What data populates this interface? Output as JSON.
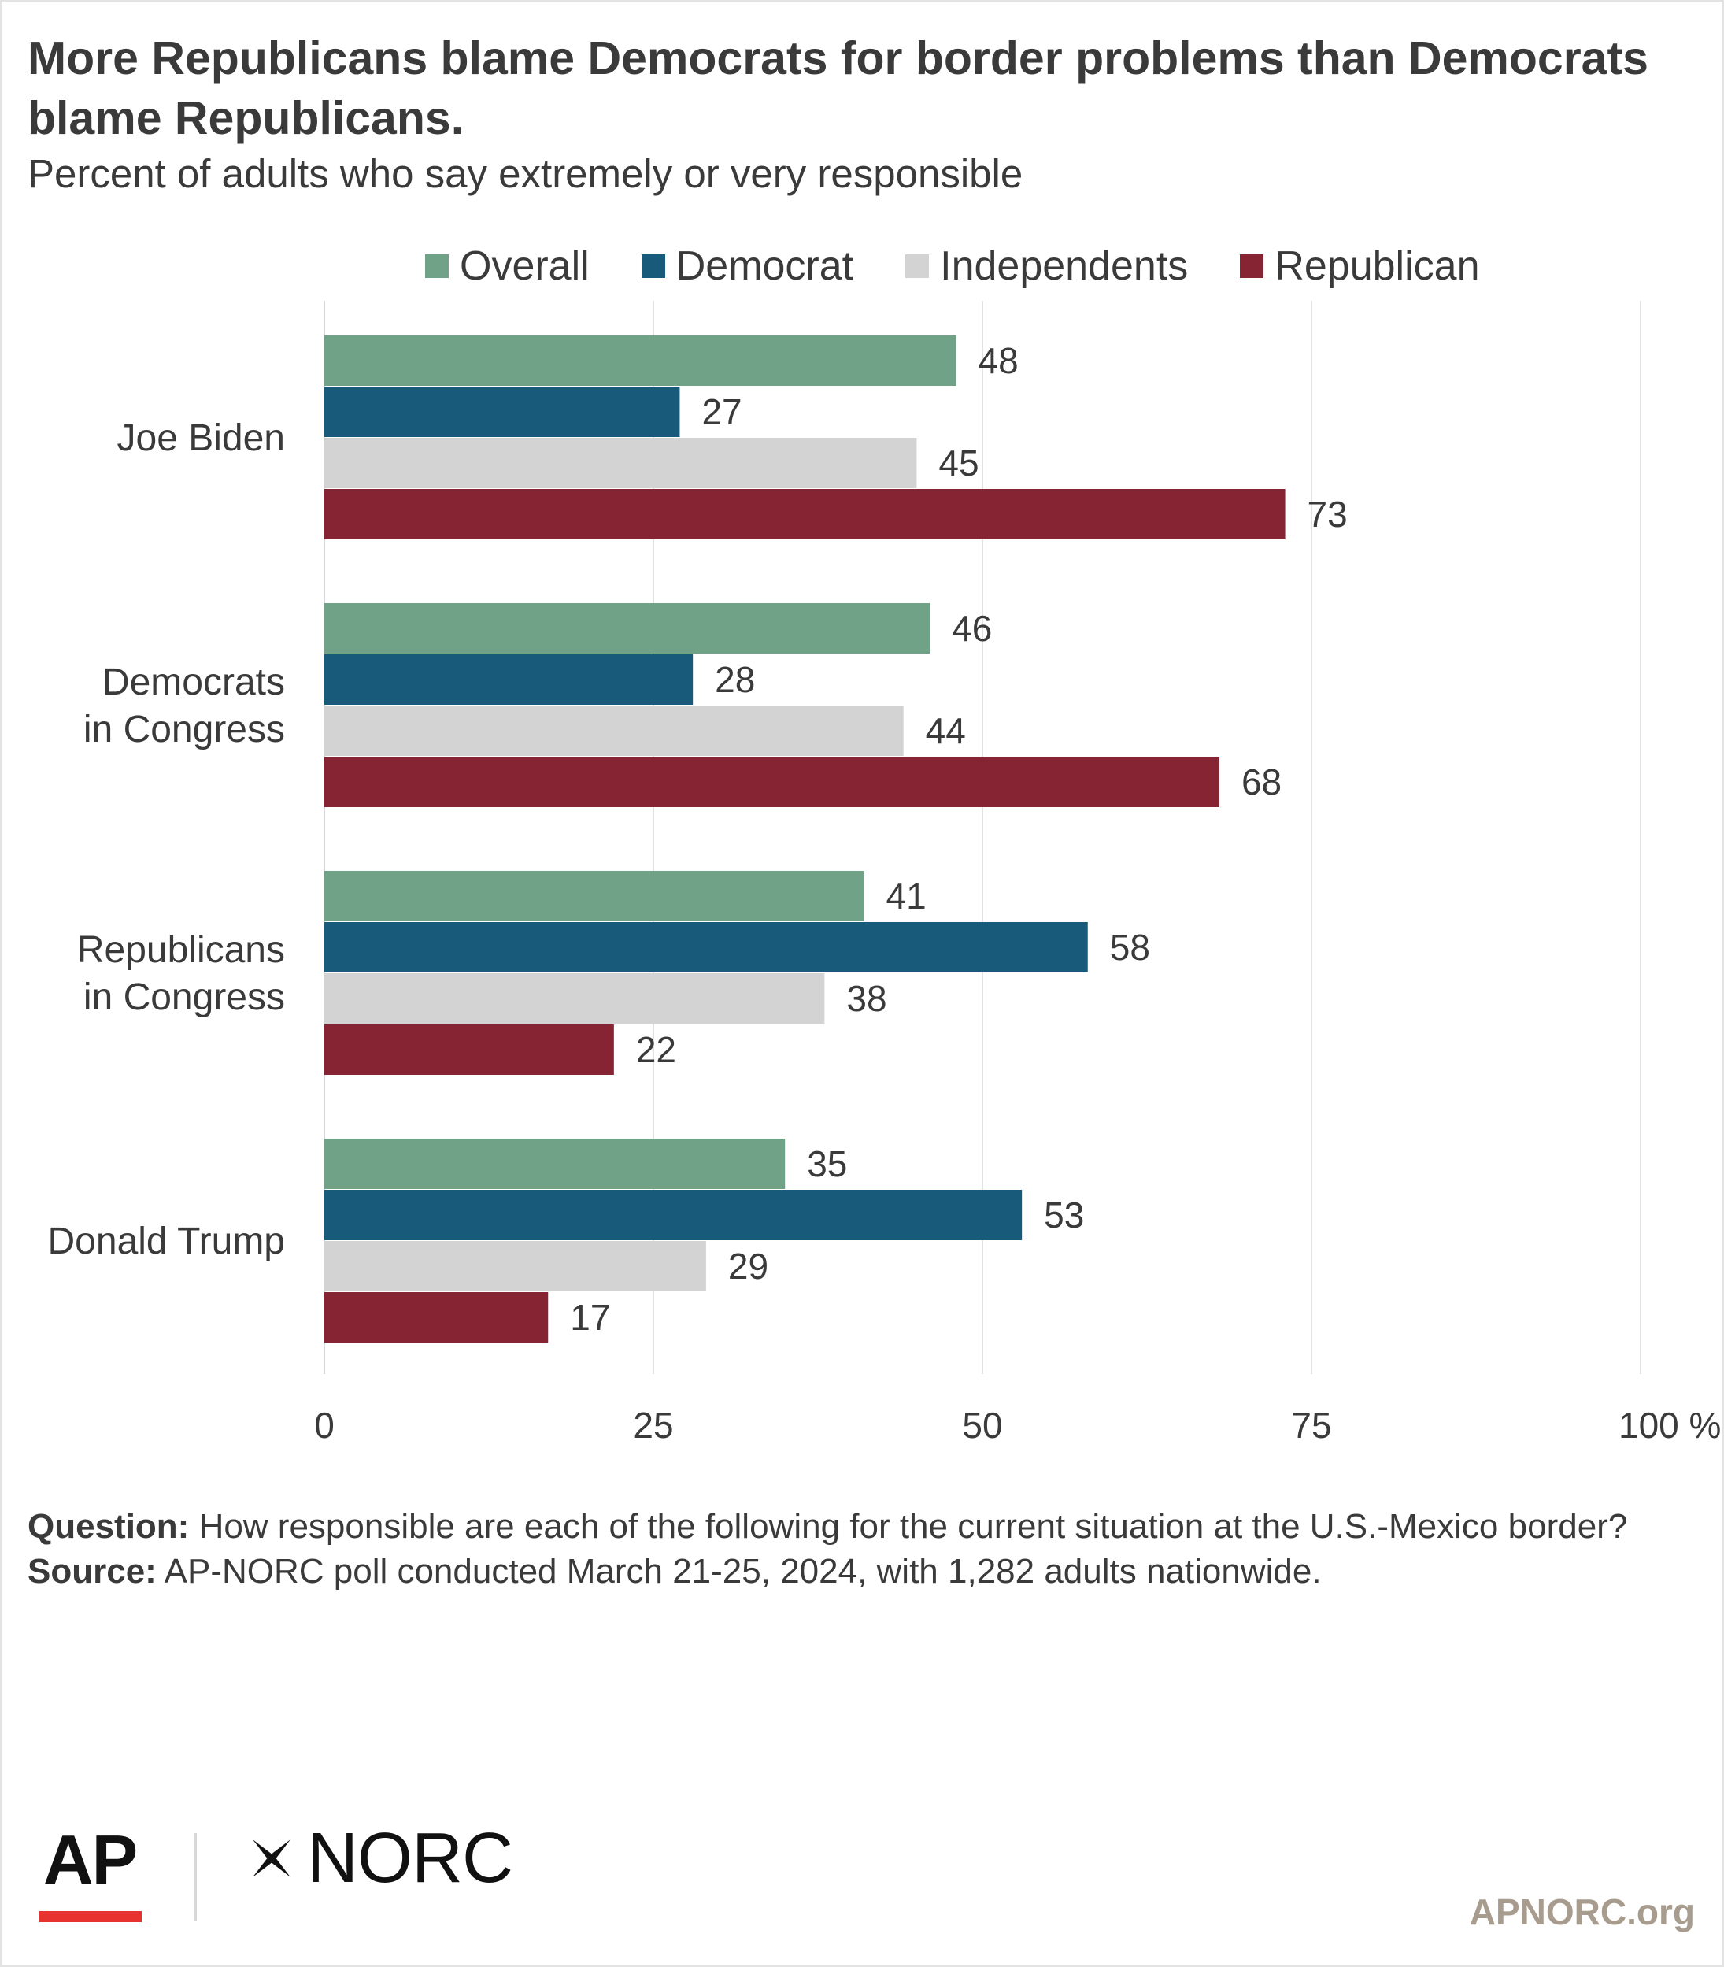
{
  "header": {
    "title": "More Republicans blame Democrats for border problems than Democrats blame Republicans.",
    "subtitle": "Percent of adults who say extremely or very responsible"
  },
  "chart_data": {
    "type": "bar",
    "orientation": "horizontal",
    "categories": [
      "Joe Biden",
      "Democrats in Congress",
      "Republicans in Congress",
      "Donald Trump"
    ],
    "category_lines": [
      [
        "Joe Biden"
      ],
      [
        "Democrats",
        "in Congress"
      ],
      [
        "Republicans",
        "in Congress"
      ],
      [
        "Donald Trump"
      ]
    ],
    "series": [
      {
        "name": "Overall",
        "color": "#6fa287",
        "values": [
          48,
          46,
          41,
          35
        ]
      },
      {
        "name": "Democrat",
        "color": "#175a7a",
        "values": [
          27,
          28,
          58,
          53
        ]
      },
      {
        "name": "Independents",
        "color": "#d3d3d3",
        "values": [
          45,
          44,
          38,
          29
        ]
      },
      {
        "name": "Republican",
        "color": "#862433",
        "values": [
          73,
          68,
          22,
          17
        ]
      }
    ],
    "xlim": [
      0,
      100
    ],
    "xticks": [
      0,
      25,
      50,
      75,
      100
    ],
    "xtick_labels": [
      "0",
      "25",
      "50",
      "75",
      "100 %"
    ],
    "grid": true,
    "legend_position": "top"
  },
  "notes": {
    "question_label": "Question:",
    "question_text": "How responsible are each of the following for the current situation at the U.S.-Mexico border?",
    "source_label": "Source:",
    "source_text": "AP-NORC poll conducted March 21-25, 2024, with 1,282 adults nationwide."
  },
  "footer": {
    "ap_logo": "AP",
    "norc_logo": "NORC",
    "site": "APNORC.org",
    "ap_accent": "#e8322f"
  }
}
